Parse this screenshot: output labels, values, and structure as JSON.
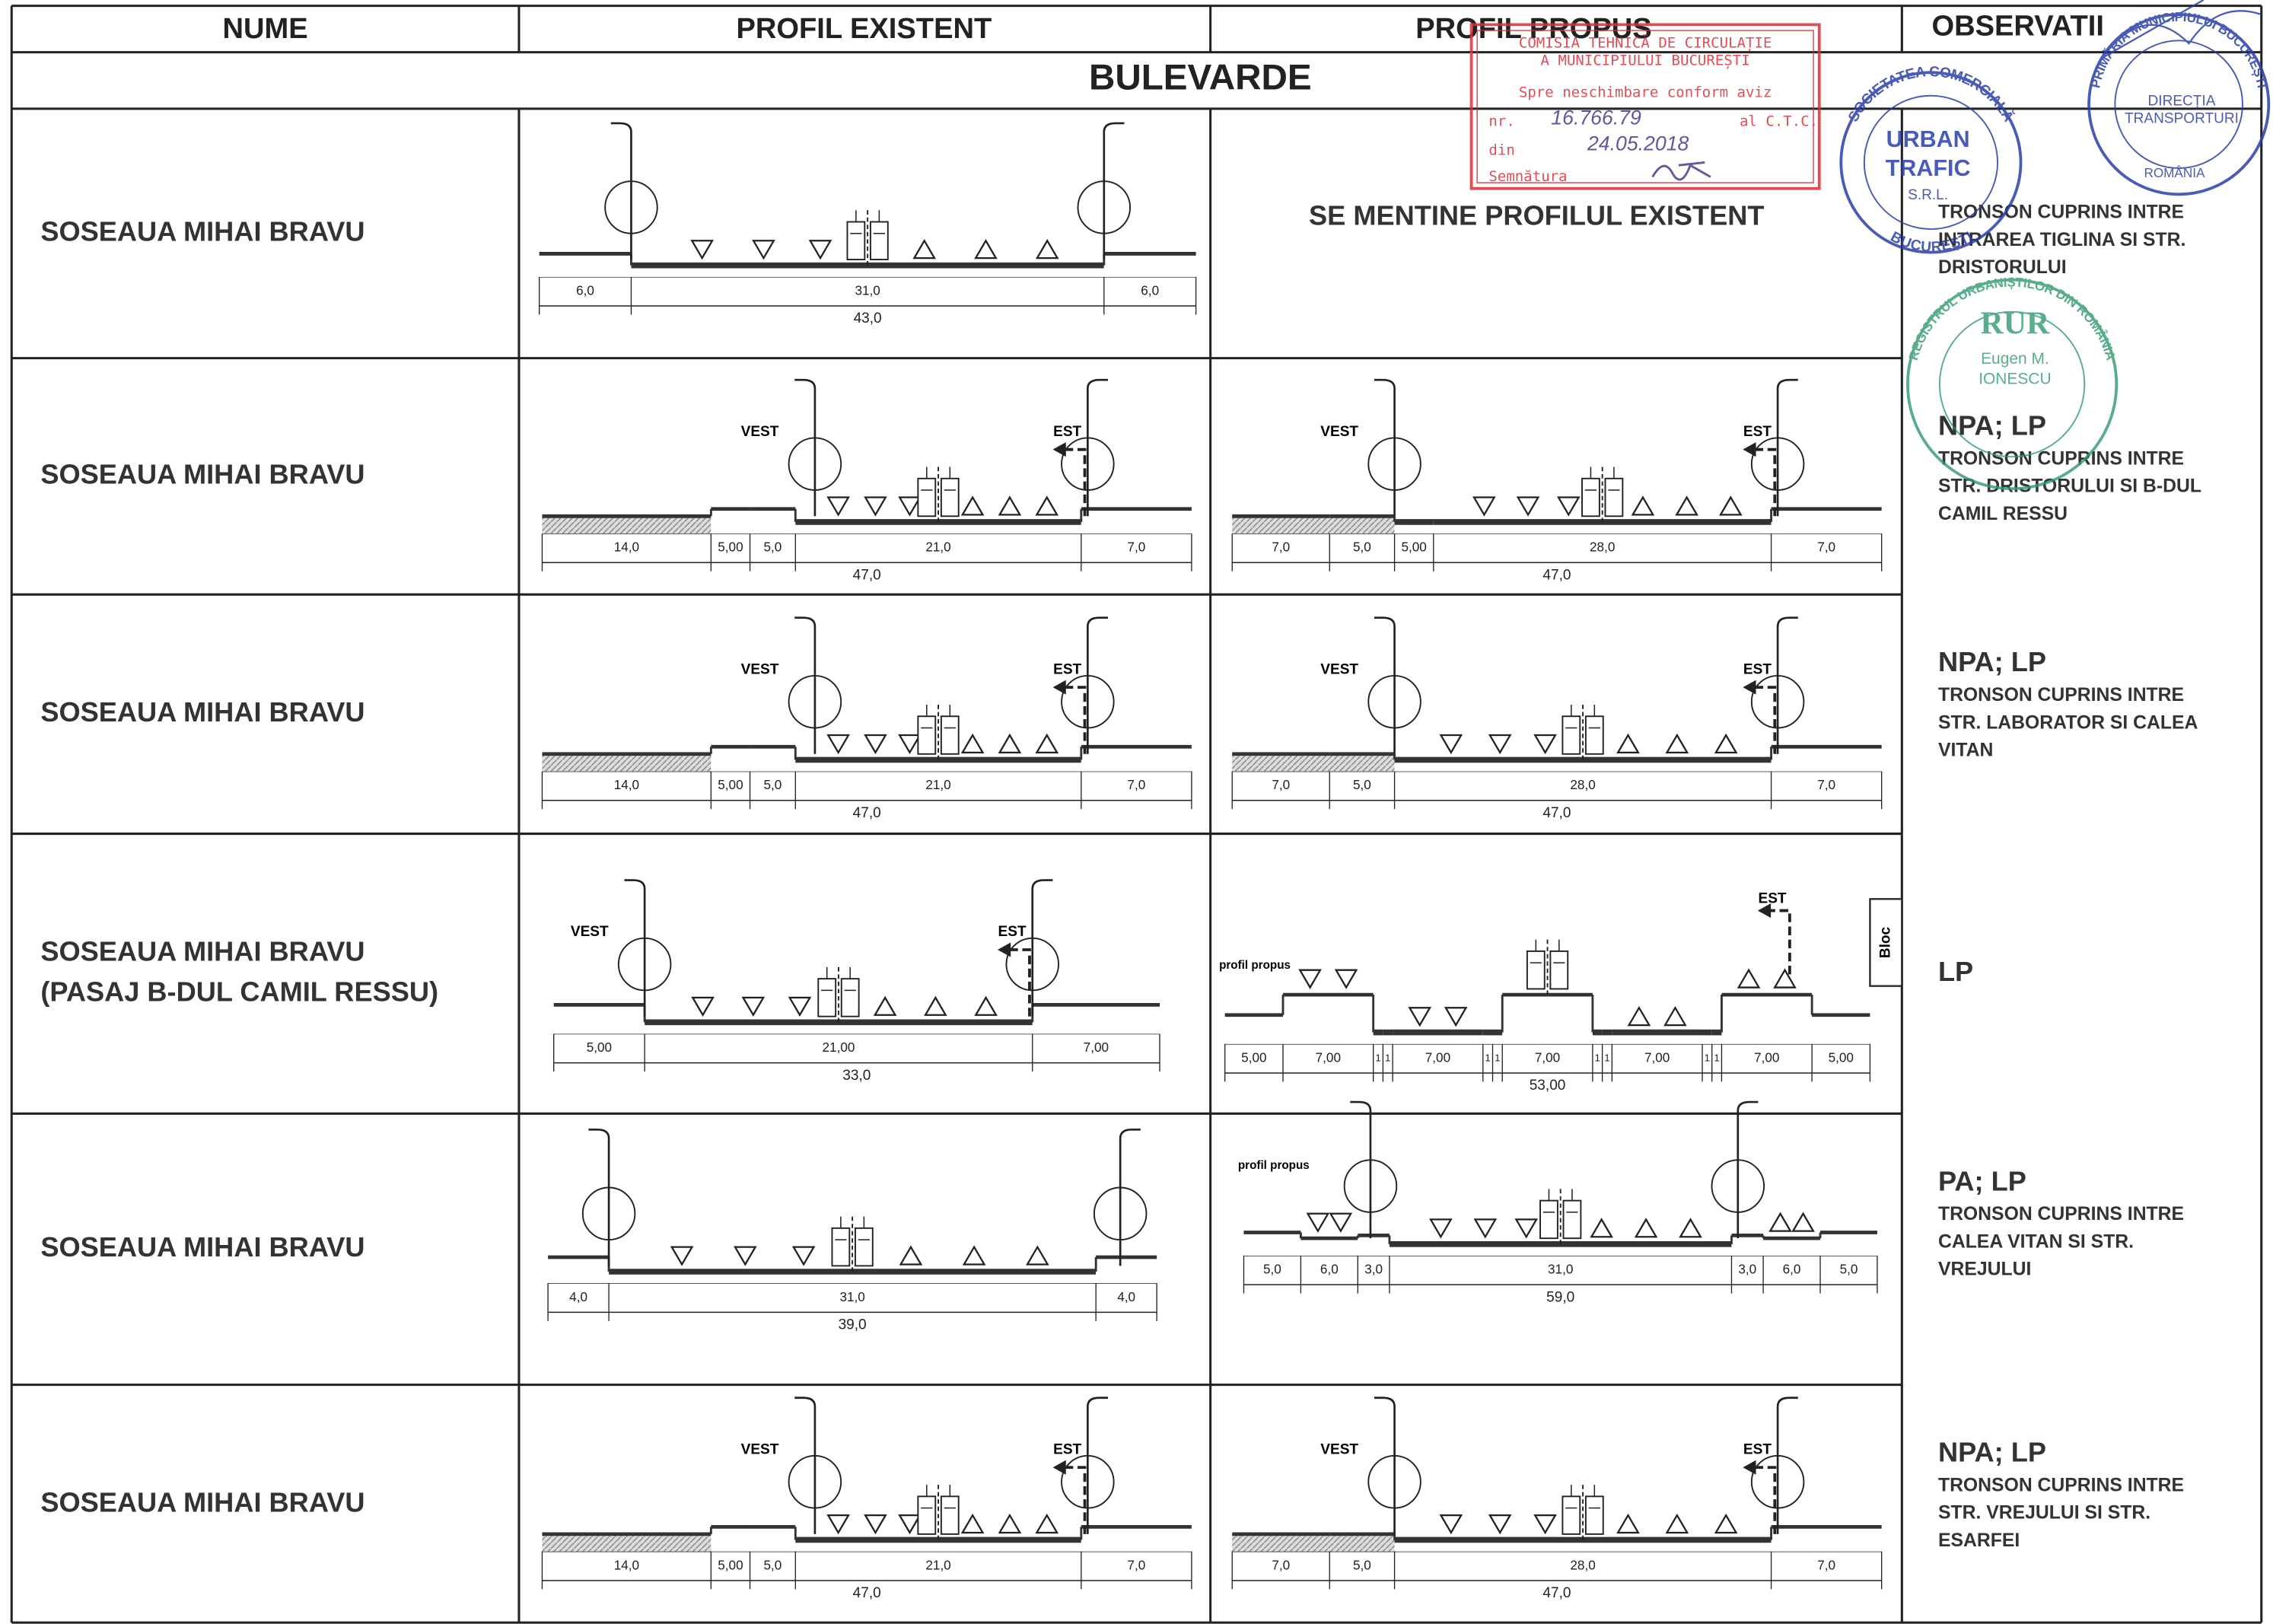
{
  "header": {
    "columns": [
      "NUME",
      "PROFIL EXISTENT",
      "PROFIL PROPUS",
      "OBSERVATII"
    ]
  },
  "section": "BULEVARDE",
  "rows": [
    {
      "name": [
        "SOSEAUA MIHAI BRAVU"
      ],
      "existing": {
        "labels": [
          "6,0",
          "31,0",
          "6,0"
        ],
        "total": "43,0"
      },
      "proposed": {
        "text": "SE MENTINE PROFILUL EXISTENT"
      },
      "observations": {
        "note": [
          "TRONSON CUPRINS INTRE",
          "INTRAREA TIGLINA SI STR.",
          "DRISTORULUI"
        ]
      }
    },
    {
      "name": [
        "SOSEAUA MIHAI BRAVU"
      ],
      "existing": {
        "west": "VEST",
        "east": "EST",
        "labels": [
          "14,0",
          "5,00",
          "5,0",
          "21,0",
          "7,0"
        ],
        "total": "47,0"
      },
      "proposed": {
        "west": "VEST",
        "east": "EST",
        "labels": [
          "7,0",
          "5,0",
          "5,00",
          "28,0",
          "7,0"
        ],
        "total": "47,0"
      },
      "observations": {
        "code": "NPA; LP",
        "note": [
          "TRONSON CUPRINS INTRE",
          "STR. DRISTORULUI SI B-DUL",
          "CAMIL RESSU"
        ]
      }
    },
    {
      "name": [
        "SOSEAUA MIHAI BRAVU"
      ],
      "existing": {
        "west": "VEST",
        "east": "EST",
        "labels": [
          "14,0",
          "5,00",
          "5,0",
          "21,0",
          "7,0"
        ],
        "total": "47,0"
      },
      "proposed": {
        "west": "VEST",
        "east": "EST",
        "labels": [
          "7,0",
          "5,0",
          "28,0",
          "7,0"
        ],
        "total": "47,0"
      },
      "observations": {
        "code": "NPA; LP",
        "note": [
          "TRONSON CUPRINS INTRE",
          "STR. LABORATOR SI CALEA",
          "VITAN"
        ]
      }
    },
    {
      "name": [
        "SOSEAUA MIHAI BRAVU",
        "(PASAJ B-DUL CAMIL RESSU)"
      ],
      "existing": {
        "west": "VEST",
        "east": "EST",
        "labels": [
          "5,00",
          "21,00",
          "7,00"
        ],
        "total": "33,0"
      },
      "proposed": {
        "caption": "profil propus",
        "east": "EST",
        "building": "Bloc",
        "labels": [
          "5,00",
          "7,00",
          "1",
          "1",
          "7,00",
          "1",
          "1",
          "7,00",
          "1",
          "1",
          "7,00",
          "1",
          "1",
          "7,00",
          "5,00"
        ],
        "total": "53,00"
      },
      "observations": {
        "code": "LP"
      }
    },
    {
      "name": [
        "SOSEAUA MIHAI BRAVU"
      ],
      "existing": {
        "labels": [
          "4,0",
          "31,0",
          "4,0"
        ],
        "total": "39,0"
      },
      "proposed": {
        "caption": "profil propus",
        "labels": [
          "5,0",
          "6,0",
          "3,0",
          "31,0",
          "3,0",
          "6,0",
          "5,0"
        ],
        "total": "59,0"
      },
      "observations": {
        "code": "PA; LP",
        "note": [
          "TRONSON CUPRINS INTRE",
          "CALEA VITAN SI STR.",
          "VREJULUI"
        ]
      }
    },
    {
      "name": [
        "SOSEAUA MIHAI BRAVU"
      ],
      "existing": {
        "west": "VEST",
        "east": "EST",
        "labels": [
          "14,0",
          "5,00",
          "5,0",
          "21,0",
          "7,0"
        ],
        "total": "47,0"
      },
      "proposed": {
        "west": "VEST",
        "east": "EST",
        "labels": [
          "7,0",
          "5,0",
          "28,0",
          "7,0"
        ],
        "total": "47,0"
      },
      "observations": {
        "code": "NPA; LP",
        "note": [
          "TRONSON CUPRINS INTRE",
          "STR. VREJULUI SI STR.",
          "ESARFEI"
        ]
      }
    }
  ],
  "stamps": {
    "ctc": {
      "lines": [
        "COMISIA TEHNICĂ DE CIRCULAȚIE",
        "A MUNICIPIULUI BUCUREȘTI",
        "Spre neschimbare conform aviz"
      ],
      "number_prefix": "nr.",
      "number": "16.766.79",
      "number_suffix": "al C.T.C.",
      "date_prefix": "din",
      "date": "24.05.2018",
      "signature": "Semnătura"
    },
    "company": {
      "ring": "SOCIETATEA COMERCIALĂ",
      "ring_bottom": "BUCUREȘTI",
      "name": [
        "URBAN",
        "TRAFIC"
      ],
      "form": "S.R.L."
    },
    "city": {
      "ring": "PRIMĂRIA MUNICIPIULUI BUCUREȘTI",
      "name": [
        "DIRECȚIA",
        "TRANSPORTURI"
      ],
      "country": "ROMÂNIA"
    },
    "rur": {
      "ring": "REGISTRUL URBANIȘTILOR DIN ROMÂNIA",
      "name": "RUR",
      "person": [
        "Eugen M.",
        "IONESCU"
      ]
    }
  }
}
